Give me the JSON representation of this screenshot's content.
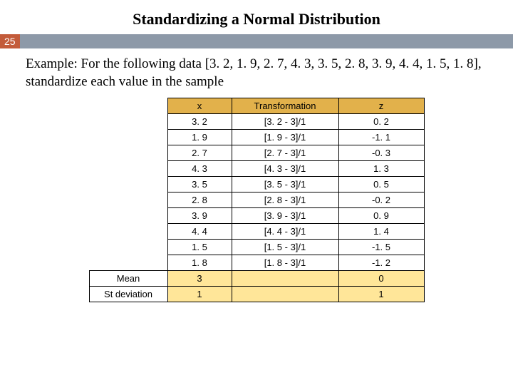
{
  "title": "Standardizing a Normal Distribution",
  "slide_number": "25",
  "example_text": "Example: For the following data [3. 2, 1. 9, 2. 7, 4. 3, 3. 5, 2. 8, 3. 9, 4. 4, 1. 5, 1. 8], standardize each value in the sample",
  "headers": {
    "x": "x",
    "transformation": "Transformation",
    "z": "z"
  },
  "rows": [
    {
      "x": "3. 2",
      "t": "[3. 2 - 3]/1",
      "z": "0. 2"
    },
    {
      "x": "1. 9",
      "t": "[1. 9 - 3]/1",
      "z": "-1. 1"
    },
    {
      "x": "2. 7",
      "t": "[2. 7 - 3]/1",
      "z": "-0. 3"
    },
    {
      "x": "4. 3",
      "t": "[4. 3 - 3]/1",
      "z": "1. 3"
    },
    {
      "x": "3. 5",
      "t": "[3. 5 - 3]/1",
      "z": "0. 5"
    },
    {
      "x": "2. 8",
      "t": "[2. 8 - 3]/1",
      "z": "-0. 2"
    },
    {
      "x": "3. 9",
      "t": "[3. 9 - 3]/1",
      "z": "0. 9"
    },
    {
      "x": "4. 4",
      "t": "[4. 4 - 3]/1",
      "z": "1. 4"
    },
    {
      "x": "1. 5",
      "t": "[1. 5 - 3]/1",
      "z": "-1. 5"
    },
    {
      "x": "1. 8",
      "t": "[1. 8 - 3]/1",
      "z": "-1. 2"
    }
  ],
  "summary": {
    "mean_label": "Mean",
    "mean_x": "3",
    "mean_z": "0",
    "sd_label": "St deviation",
    "sd_x": "1",
    "sd_z": "1"
  },
  "colors": {
    "badge_bg": "#c35b3a",
    "bar_bg": "#8d99a8",
    "header_bg": "#e2b14b",
    "summary_bg": "#ffe699"
  }
}
